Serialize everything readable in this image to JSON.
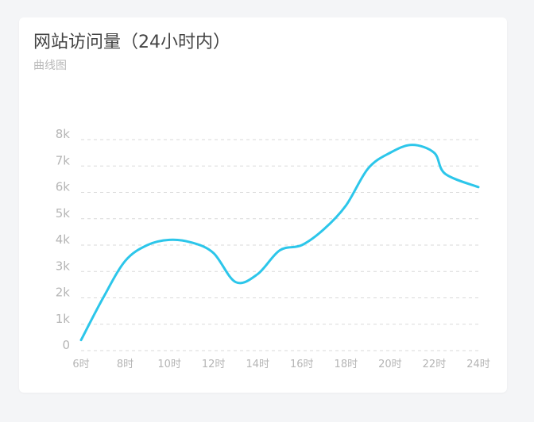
{
  "card": {
    "title": "网站访问量（24小时内）",
    "subtitle": "曲线图"
  },
  "colors": {
    "line": "#2cc6ea",
    "grid": "#d9d9d9",
    "axis_text": "#b5b5b5",
    "title": "#444444",
    "background": "#f4f5f7"
  },
  "chart_data": {
    "type": "line",
    "title": "网站访问量（24小时内）",
    "subtitle": "曲线图",
    "x_ticks": [
      "6时",
      "8时",
      "10时",
      "12时",
      "14时",
      "16时",
      "18时",
      "20时",
      "22时",
      "24时"
    ],
    "y_ticks": [
      "0",
      "1k",
      "2k",
      "3k",
      "4k",
      "5k",
      "6k",
      "7k",
      "8k"
    ],
    "ylim": [
      0,
      8000
    ],
    "xlim": [
      6,
      24
    ],
    "grid": "horizontal-dashed",
    "series": [
      {
        "x": [
          6,
          7,
          8,
          9,
          10,
          11,
          12,
          13,
          14,
          15,
          16,
          17,
          18,
          19,
          20,
          21,
          22,
          22.5,
          24
        ],
        "values": [
          400,
          2000,
          3400,
          4000,
          4200,
          4100,
          3700,
          2600,
          2900,
          3800,
          4000,
          4600,
          5500,
          6900,
          7500,
          7800,
          7500,
          6700,
          6200
        ]
      }
    ]
  }
}
